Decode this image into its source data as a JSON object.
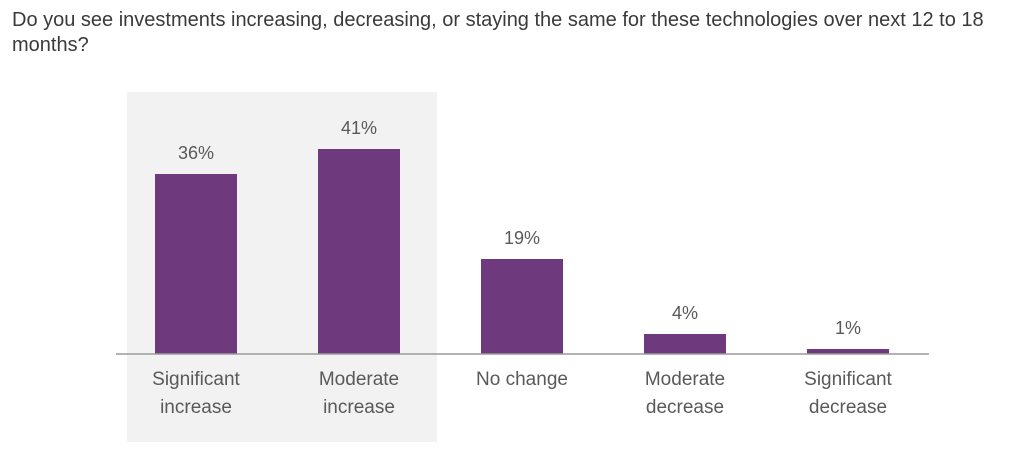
{
  "question": "Do you see investments increasing, decreasing, or staying the same for these technologies over next 12 to 18 months?",
  "chart_data": {
    "type": "bar",
    "title": "",
    "categories": [
      [
        "Significant",
        "increase"
      ],
      [
        "Moderate",
        "increase"
      ],
      [
        "No change"
      ],
      [
        "Moderate",
        "decrease"
      ],
      [
        "Significant",
        "decrease"
      ]
    ],
    "values": [
      36,
      41,
      19,
      4,
      1
    ],
    "value_labels": [
      "36%",
      "41%",
      "19%",
      "4%",
      "1%"
    ],
    "unit": "%",
    "ylim": [
      0,
      45
    ],
    "highlighted_categories": [
      0,
      1
    ],
    "grid": false,
    "colors": {
      "bar": "#6e3a7d",
      "highlight_band": "#f2f2f2",
      "axis": "#9a9a9a"
    }
  }
}
